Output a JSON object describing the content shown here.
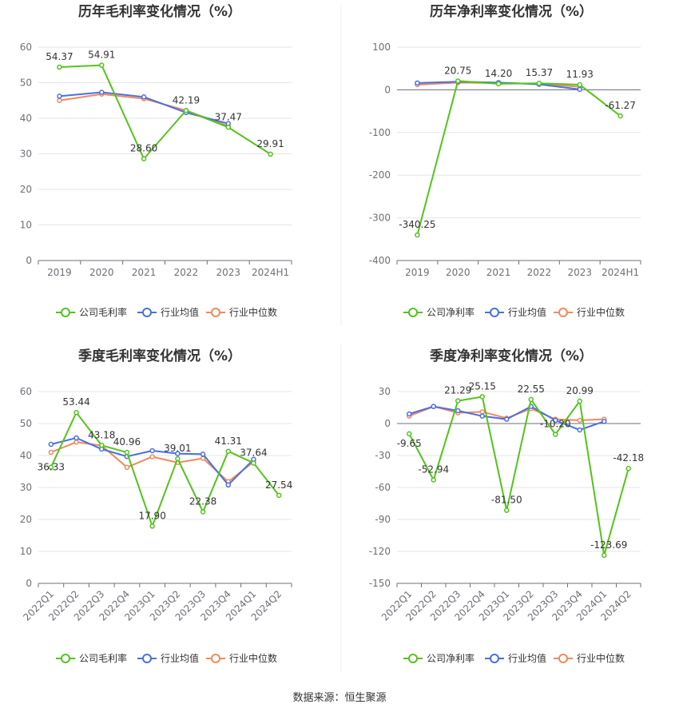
{
  "chart_data": [
    {
      "type": "line",
      "title": "历年毛利率变化情况（%）",
      "categories": [
        "2019",
        "2020",
        "2021",
        "2022",
        "2023",
        "2024H1"
      ],
      "ylim": [
        0,
        60
      ],
      "yticks": [
        0,
        10,
        20,
        30,
        40,
        50,
        60
      ],
      "grid": true,
      "legend_position": "bottom",
      "series": [
        {
          "name": "公司毛利率",
          "color": "#52c41a",
          "values": [
            54.37,
            54.91,
            28.6,
            42.19,
            37.47,
            29.91
          ],
          "labels": [
            "54.37",
            "54.91",
            "28.60",
            "42.19",
            "37.47",
            "29.91"
          ]
        },
        {
          "name": "行业均值",
          "color": "#4a6fe3",
          "values": [
            46.2,
            47.3,
            46.0,
            41.6,
            38.5,
            null
          ]
        },
        {
          "name": "行业中位数",
          "color": "#f08a5d",
          "values": [
            45.0,
            46.8,
            45.5,
            42.2,
            37.8,
            null
          ]
        }
      ]
    },
    {
      "type": "line",
      "title": "历年净利率变化情况（%）",
      "categories": [
        "2019",
        "2020",
        "2021",
        "2022",
        "2023",
        "2024H1"
      ],
      "ylim": [
        -400,
        100
      ],
      "yticks": [
        -400,
        -300,
        -200,
        -100,
        0,
        100
      ],
      "grid": true,
      "legend_position": "bottom",
      "series": [
        {
          "name": "公司净利率",
          "color": "#52c41a",
          "values": [
            -340.25,
            20.75,
            14.2,
            15.37,
            11.93,
            -61.27
          ],
          "labels": [
            "-340.25",
            "20.75",
            "14.20",
            "15.37",
            "11.93",
            "-61.27"
          ]
        },
        {
          "name": "行业均值",
          "color": "#4a6fe3",
          "values": [
            16,
            19,
            17,
            13,
            1,
            null
          ]
        },
        {
          "name": "行业中位数",
          "color": "#f08a5d",
          "values": [
            12,
            17,
            16,
            14,
            7,
            null
          ]
        }
      ]
    },
    {
      "type": "line",
      "title": "季度毛利率变化情况（%）",
      "categories": [
        "2022Q1",
        "2022Q2",
        "2022Q3",
        "2022Q4",
        "2023Q1",
        "2023Q2",
        "2023Q3",
        "2023Q4",
        "2024Q1",
        "2024Q2"
      ],
      "ylim": [
        0,
        60
      ],
      "yticks": [
        0,
        10,
        20,
        30,
        40,
        50,
        60
      ],
      "grid": true,
      "legend_position": "bottom",
      "series": [
        {
          "name": "公司毛利率",
          "color": "#52c41a",
          "values": [
            36.33,
            53.44,
            43.18,
            40.96,
            17.9,
            39.01,
            22.38,
            41.31,
            37.64,
            27.54
          ],
          "labels": [
            "36.33",
            "53.44",
            "43.18",
            "40.96",
            "17.90",
            "39.01",
            "22.38",
            "41.31",
            "37.64",
            "27.54"
          ]
        },
        {
          "name": "行业均值",
          "color": "#4a6fe3",
          "values": [
            43.5,
            45.5,
            42.0,
            39.7,
            41.5,
            40.6,
            40.4,
            30.8,
            38.8,
            null
          ]
        },
        {
          "name": "行业中位数",
          "color": "#f08a5d",
          "values": [
            41.0,
            44.2,
            43.1,
            36.3,
            39.6,
            37.8,
            39.1,
            31.8,
            38.0,
            null
          ]
        }
      ]
    },
    {
      "type": "line",
      "title": "季度净利率变化情况（%）",
      "categories": [
        "2022Q1",
        "2022Q2",
        "2022Q3",
        "2022Q4",
        "2023Q1",
        "2023Q2",
        "2023Q3",
        "2023Q4",
        "2024Q1",
        "2024Q2"
      ],
      "ylim": [
        -150,
        30
      ],
      "yticks": [
        -150,
        -120,
        -90,
        -60,
        -30,
        0,
        30
      ],
      "grid": true,
      "legend_position": "bottom",
      "series": [
        {
          "name": "公司净利率",
          "color": "#52c41a",
          "values": [
            -9.65,
            -52.94,
            21.29,
            25.15,
            -81.5,
            22.55,
            -10.2,
            20.99,
            -123.69,
            -42.18
          ],
          "labels": [
            "-9.65",
            "-52.94",
            "21.29",
            "25.15",
            "-81.50",
            "22.55",
            "-10.20",
            "20.99",
            "-123.69",
            "-42.18"
          ]
        },
        {
          "name": "行业均值",
          "color": "#4a6fe3",
          "values": [
            9,
            16,
            12,
            7,
            4,
            16,
            3,
            -6,
            2,
            null
          ]
        },
        {
          "name": "行业中位数",
          "color": "#f08a5d",
          "values": [
            7,
            16,
            10,
            11,
            5,
            14,
            4,
            3,
            4,
            null
          ]
        }
      ]
    }
  ],
  "footer": {
    "source": "数据来源：恒生聚源"
  }
}
